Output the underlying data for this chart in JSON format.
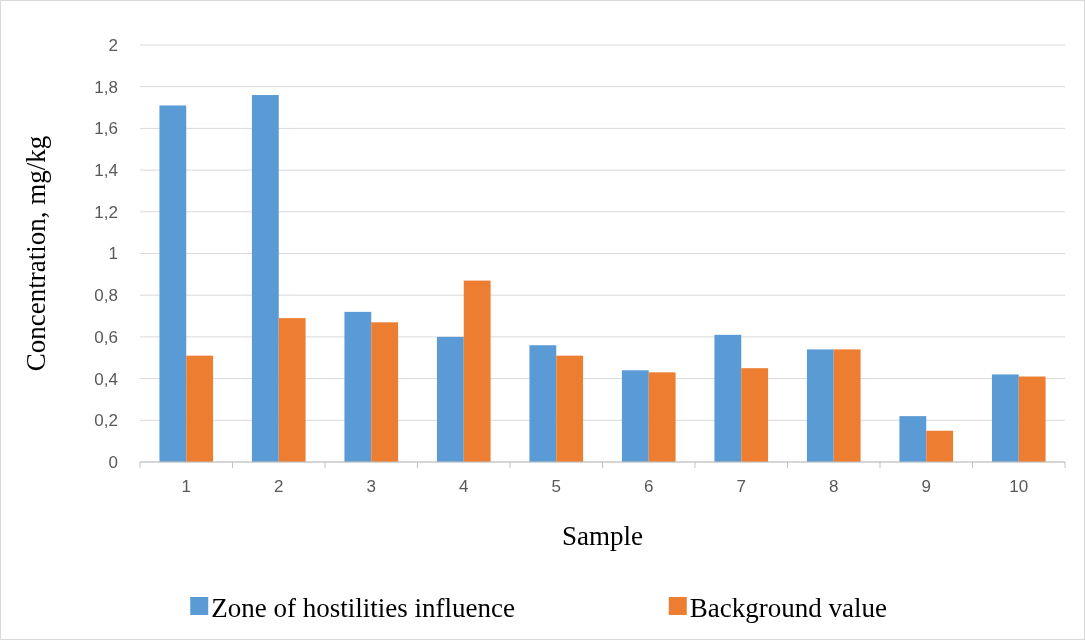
{
  "chart_data": {
    "type": "bar",
    "xlabel": "Sample",
    "ylabel": "Concentration, mg/kg",
    "categories": [
      "1",
      "2",
      "3",
      "4",
      "5",
      "6",
      "7",
      "8",
      "9",
      "10"
    ],
    "series": [
      {
        "name": "Zone of hostilities influence",
        "color": "#5b9bd5",
        "values": [
          1.71,
          1.76,
          0.72,
          0.6,
          0.56,
          0.44,
          0.61,
          0.54,
          0.22,
          0.42
        ]
      },
      {
        "name": "Background value",
        "color": "#ed7d31",
        "values": [
          0.51,
          0.69,
          0.67,
          0.87,
          0.51,
          0.43,
          0.45,
          0.54,
          0.15,
          0.41
        ]
      }
    ],
    "ylim": [
      0,
      2
    ],
    "yticks": [
      0,
      {
        "value": 0.2,
        "label": "0,2"
      },
      {
        "value": 0.4,
        "label": "0,4"
      },
      {
        "value": 0.6,
        "label": "0,6"
      },
      {
        "value": 0.8,
        "label": "0,8"
      },
      1,
      {
        "value": 1.2,
        "label": "1,2"
      },
      {
        "value": 1.4,
        "label": "1,4"
      },
      {
        "value": 1.6,
        "label": "1,6"
      },
      {
        "value": 1.8,
        "label": "1,8"
      },
      2
    ],
    "grid": "y",
    "legend": "bottom"
  }
}
